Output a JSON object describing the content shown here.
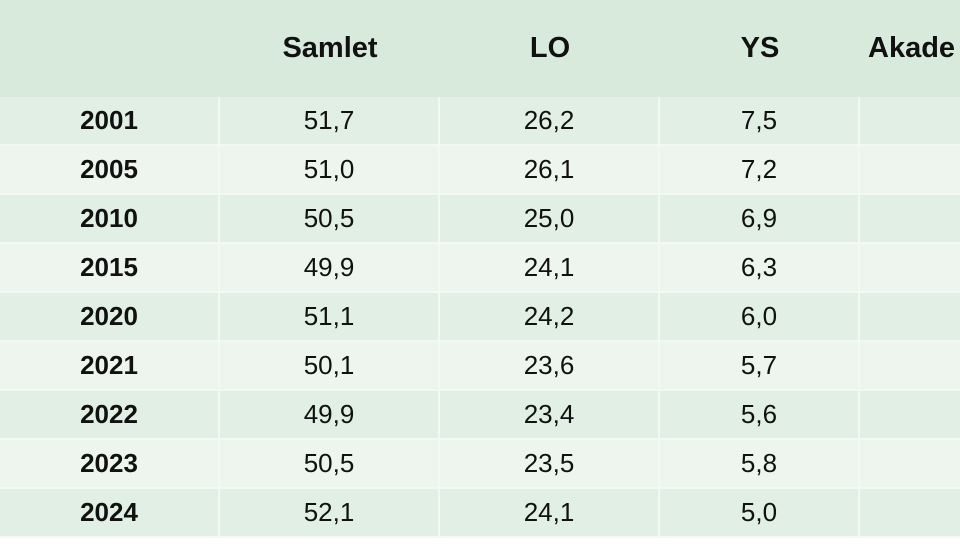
{
  "table": {
    "header": [
      "Samlet",
      "LO",
      "YS",
      "Akade"
    ],
    "rows": [
      [
        "2001",
        "51,7",
        "26,2",
        "7,5"
      ],
      [
        "2005",
        "51,0",
        "26,1",
        "7,2"
      ],
      [
        "2010",
        "50,5",
        "25,0",
        "6,9"
      ],
      [
        "2015",
        "49,9",
        "24,1",
        "6,3"
      ],
      [
        "2020",
        "51,1",
        "24,2",
        "6,0"
      ],
      [
        "2021",
        "50,1",
        "23,6",
        "5,7"
      ],
      [
        "2022",
        "49,9",
        "23,4",
        "5,6"
      ],
      [
        "2023",
        "50,5",
        "23,5",
        "5,8"
      ],
      [
        "2024",
        "52,1",
        "24,1",
        "5,0"
      ]
    ]
  }
}
